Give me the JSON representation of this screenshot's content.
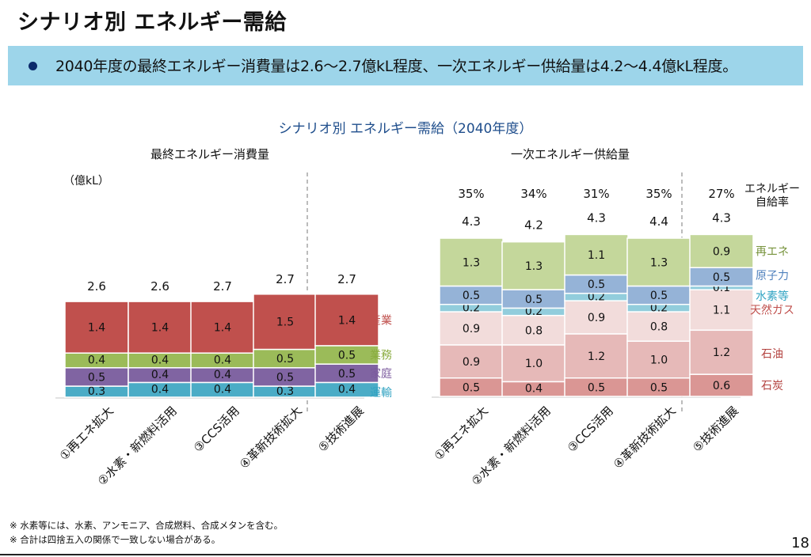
{
  "page": {
    "title": "シナリオ別 エネルギー需給",
    "banner_text": "2040年度の最終エネルギー消費量は2.6～2.7億kL程度、一次エネルギー供給量は4.2～4.4億kL程度。",
    "page_number": "18",
    "footnotes": [
      "※ 水素等には、水素、アンモニア、合成燃料、合成メタンを含む。",
      "※ 合計は四捨五入の関係で一致しない場合がある。"
    ]
  },
  "chart_data": [
    {
      "type": "bar",
      "stacked": true,
      "title": "シナリオ別 エネルギー需給（2040年度）",
      "subtitle": "最終エネルギー消費量",
      "ylabel": "（億kL）",
      "categories": [
        "①再エネ拡大",
        "②水素・新燃料活用",
        "③CCS活用",
        "④革新技術拡大",
        "⑤技術進展"
      ],
      "totals": [
        "2.6",
        "2.6",
        "2.7",
        "2.7",
        "2.7"
      ],
      "series": [
        {
          "name": "運輸",
          "color": "#4bacc6",
          "label_color": "#31a3c2",
          "values": [
            0.3,
            0.4,
            0.4,
            0.3,
            0.4
          ]
        },
        {
          "name": "家庭",
          "color": "#8064a2",
          "label_color": "#7b5a9e",
          "values": [
            0.5,
            0.4,
            0.4,
            0.5,
            0.5
          ]
        },
        {
          "name": "業務",
          "color": "#9bbb59",
          "label_color": "#8aac3f",
          "values": [
            0.4,
            0.4,
            0.4,
            0.5,
            0.5
          ]
        },
        {
          "name": "産業",
          "color": "#c0504d",
          "label_color": "#c0504d",
          "values": [
            1.4,
            1.4,
            1.4,
            1.5,
            1.4
          ]
        }
      ],
      "separator_after_index": 3
    },
    {
      "type": "bar",
      "stacked": true,
      "subtitle": "一次エネルギー供給量",
      "categories": [
        "①再エネ拡大",
        "②水素・新燃料活用",
        "③CCS活用",
        "④革新技術拡大",
        "⑤技術進展"
      ],
      "totals": [
        "4.3",
        "4.2",
        "4.3",
        "4.4",
        "4.3"
      ],
      "self_sufficiency_label": "エネルギー\n自給率",
      "self_sufficiency": [
        "35%",
        "34%",
        "31%",
        "35%",
        "27%"
      ],
      "series": [
        {
          "name": "石炭",
          "color": "#da9694",
          "label_color": "#b3413e",
          "values": [
            0.5,
            0.4,
            0.5,
            0.5,
            0.6
          ]
        },
        {
          "name": "石油",
          "color": "#e6b9b8",
          "label_color": "#b3413e",
          "values": [
            0.9,
            1.0,
            1.2,
            1.0,
            1.2
          ]
        },
        {
          "name": "天然ガス",
          "color": "#f2dcdb",
          "label_color": "#c0504d",
          "values": [
            0.9,
            0.8,
            0.9,
            0.8,
            1.1
          ]
        },
        {
          "name": "水素等",
          "color": "#92cddc",
          "label_color": "#31a3c2",
          "values": [
            0.2,
            0.2,
            0.2,
            0.2,
            0.1
          ]
        },
        {
          "name": "原子力",
          "color": "#95b3d7",
          "label_color": "#4f81bd",
          "values": [
            0.5,
            0.5,
            0.5,
            0.5,
            0.5
          ]
        },
        {
          "name": "再エネ",
          "color": "#c4d79b",
          "label_color": "#77933c",
          "values": [
            1.3,
            1.3,
            1.1,
            1.3,
            0.9
          ]
        }
      ],
      "separator_after_index": 3
    }
  ]
}
